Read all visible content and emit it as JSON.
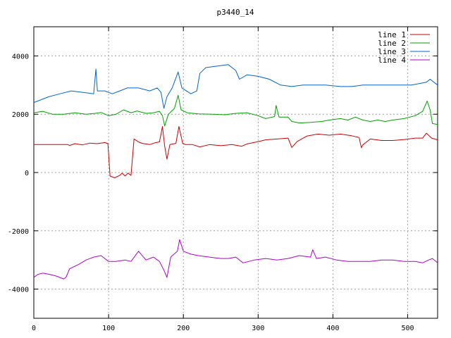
{
  "chart_data": {
    "type": "line",
    "title": "p3440_14",
    "xlabel": "",
    "ylabel": "",
    "xlim": [
      0,
      540
    ],
    "ylim": [
      -5000,
      5000
    ],
    "xticks": [
      0,
      100,
      200,
      300,
      400,
      500
    ],
    "yticks": [
      -4000,
      -2000,
      0,
      2000,
      4000
    ],
    "grid": true,
    "legend_position": "top-right",
    "series": [
      {
        "name": "line 1",
        "color": "#cc0000",
        "points": [
          [
            0,
            960
          ],
          [
            45,
            960
          ],
          [
            48,
            930
          ],
          [
            55,
            990
          ],
          [
            65,
            950
          ],
          [
            75,
            1010
          ],
          [
            85,
            990
          ],
          [
            95,
            1030
          ],
          [
            99,
            990
          ],
          [
            102,
            -120
          ],
          [
            108,
            -180
          ],
          [
            115,
            -100
          ],
          [
            118,
            -20
          ],
          [
            122,
            -120
          ],
          [
            126,
            -20
          ],
          [
            130,
            -100
          ],
          [
            134,
            1150
          ],
          [
            140,
            1050
          ],
          [
            145,
            1000
          ],
          [
            155,
            960
          ],
          [
            162,
            1020
          ],
          [
            168,
            1050
          ],
          [
            172,
            1580
          ],
          [
            175,
            900
          ],
          [
            178,
            460
          ],
          [
            182,
            960
          ],
          [
            190,
            1000
          ],
          [
            194,
            1580
          ],
          [
            199,
            1000
          ],
          [
            203,
            960
          ],
          [
            212,
            960
          ],
          [
            222,
            880
          ],
          [
            235,
            960
          ],
          [
            250,
            920
          ],
          [
            265,
            960
          ],
          [
            278,
            900
          ],
          [
            285,
            980
          ],
          [
            300,
            1060
          ],
          [
            310,
            1120
          ],
          [
            325,
            1150
          ],
          [
            340,
            1180
          ],
          [
            345,
            860
          ],
          [
            352,
            1060
          ],
          [
            365,
            1250
          ],
          [
            380,
            1320
          ],
          [
            395,
            1280
          ],
          [
            410,
            1320
          ],
          [
            425,
            1260
          ],
          [
            435,
            1200
          ],
          [
            438,
            850
          ],
          [
            440,
            950
          ],
          [
            450,
            1150
          ],
          [
            465,
            1100
          ],
          [
            480,
            1100
          ],
          [
            495,
            1130
          ],
          [
            510,
            1180
          ],
          [
            520,
            1180
          ],
          [
            525,
            1350
          ],
          [
            532,
            1180
          ],
          [
            540,
            1120
          ]
        ]
      },
      {
        "name": "line 2",
        "color": "#00a000",
        "points": [
          [
            0,
            2050
          ],
          [
            12,
            2100
          ],
          [
            25,
            2000
          ],
          [
            40,
            2000
          ],
          [
            55,
            2050
          ],
          [
            70,
            2000
          ],
          [
            82,
            2030
          ],
          [
            90,
            2060
          ],
          [
            100,
            1950
          ],
          [
            110,
            2000
          ],
          [
            120,
            2150
          ],
          [
            130,
            2050
          ],
          [
            138,
            2110
          ],
          [
            150,
            2030
          ],
          [
            160,
            2050
          ],
          [
            168,
            2100
          ],
          [
            172,
            1950
          ],
          [
            175,
            1600
          ],
          [
            180,
            2000
          ],
          [
            188,
            2200
          ],
          [
            193,
            2650
          ],
          [
            197,
            2150
          ],
          [
            205,
            2050
          ],
          [
            220,
            2010
          ],
          [
            240,
            2000
          ],
          [
            255,
            1980
          ],
          [
            270,
            2030
          ],
          [
            285,
            2050
          ],
          [
            300,
            1950
          ],
          [
            310,
            1850
          ],
          [
            322,
            1920
          ],
          [
            324,
            2300
          ],
          [
            328,
            1900
          ],
          [
            340,
            1900
          ],
          [
            345,
            1750
          ],
          [
            355,
            1700
          ],
          [
            370,
            1720
          ],
          [
            385,
            1750
          ],
          [
            395,
            1800
          ],
          [
            410,
            1850
          ],
          [
            420,
            1800
          ],
          [
            430,
            1900
          ],
          [
            440,
            1800
          ],
          [
            450,
            1750
          ],
          [
            460,
            1800
          ],
          [
            470,
            1750
          ],
          [
            480,
            1800
          ],
          [
            495,
            1850
          ],
          [
            510,
            1950
          ],
          [
            520,
            2100
          ],
          [
            526,
            2450
          ],
          [
            530,
            2150
          ],
          [
            533,
            1680
          ],
          [
            540,
            1650
          ]
        ]
      },
      {
        "name": "line 3",
        "color": "#0066cc",
        "points": [
          [
            0,
            2400
          ],
          [
            10,
            2500
          ],
          [
            20,
            2600
          ],
          [
            35,
            2700
          ],
          [
            50,
            2800
          ],
          [
            65,
            2750
          ],
          [
            80,
            2700
          ],
          [
            83,
            3550
          ],
          [
            85,
            2800
          ],
          [
            95,
            2800
          ],
          [
            105,
            2700
          ],
          [
            115,
            2800
          ],
          [
            125,
            2900
          ],
          [
            140,
            2900
          ],
          [
            155,
            2800
          ],
          [
            165,
            2900
          ],
          [
            170,
            2750
          ],
          [
            174,
            2200
          ],
          [
            178,
            2600
          ],
          [
            185,
            2900
          ],
          [
            193,
            3450
          ],
          [
            198,
            2900
          ],
          [
            210,
            2700
          ],
          [
            218,
            2800
          ],
          [
            222,
            3400
          ],
          [
            230,
            3600
          ],
          [
            245,
            3650
          ],
          [
            260,
            3700
          ],
          [
            270,
            3500
          ],
          [
            275,
            3200
          ],
          [
            285,
            3350
          ],
          [
            300,
            3300
          ],
          [
            315,
            3200
          ],
          [
            330,
            3000
          ],
          [
            345,
            2950
          ],
          [
            360,
            3000
          ],
          [
            375,
            3000
          ],
          [
            390,
            3000
          ],
          [
            410,
            2950
          ],
          [
            425,
            2950
          ],
          [
            440,
            3000
          ],
          [
            460,
            3000
          ],
          [
            475,
            3000
          ],
          [
            490,
            3000
          ],
          [
            505,
            3000
          ],
          [
            515,
            3050
          ],
          [
            525,
            3100
          ],
          [
            530,
            3200
          ],
          [
            535,
            3100
          ],
          [
            540,
            3000
          ]
        ]
      },
      {
        "name": "line 4",
        "color": "#b000d0",
        "points": [
          [
            0,
            -3600
          ],
          [
            5,
            -3500
          ],
          [
            12,
            -3450
          ],
          [
            22,
            -3500
          ],
          [
            30,
            -3550
          ],
          [
            40,
            -3650
          ],
          [
            43,
            -3600
          ],
          [
            48,
            -3300
          ],
          [
            60,
            -3150
          ],
          [
            70,
            -3000
          ],
          [
            80,
            -2900
          ],
          [
            90,
            -2850
          ],
          [
            100,
            -3050
          ],
          [
            110,
            -3050
          ],
          [
            122,
            -3000
          ],
          [
            130,
            -3050
          ],
          [
            140,
            -2700
          ],
          [
            150,
            -3000
          ],
          [
            160,
            -2900
          ],
          [
            168,
            -3050
          ],
          [
            174,
            -3350
          ],
          [
            178,
            -3600
          ],
          [
            183,
            -2900
          ],
          [
            192,
            -2700
          ],
          [
            195,
            -2300
          ],
          [
            200,
            -2700
          ],
          [
            210,
            -2800
          ],
          [
            220,
            -2850
          ],
          [
            235,
            -2900
          ],
          [
            250,
            -2950
          ],
          [
            260,
            -2950
          ],
          [
            270,
            -2900
          ],
          [
            280,
            -3100
          ],
          [
            295,
            -3000
          ],
          [
            310,
            -2950
          ],
          [
            325,
            -3000
          ],
          [
            340,
            -2950
          ],
          [
            355,
            -2850
          ],
          [
            370,
            -2900
          ],
          [
            373,
            -2650
          ],
          [
            378,
            -2950
          ],
          [
            390,
            -2900
          ],
          [
            405,
            -3000
          ],
          [
            420,
            -3050
          ],
          [
            435,
            -3050
          ],
          [
            450,
            -3050
          ],
          [
            465,
            -3000
          ],
          [
            480,
            -3000
          ],
          [
            495,
            -3050
          ],
          [
            510,
            -3050
          ],
          [
            520,
            -3100
          ],
          [
            528,
            -3000
          ],
          [
            533,
            -2950
          ],
          [
            540,
            -3100
          ]
        ]
      }
    ]
  }
}
